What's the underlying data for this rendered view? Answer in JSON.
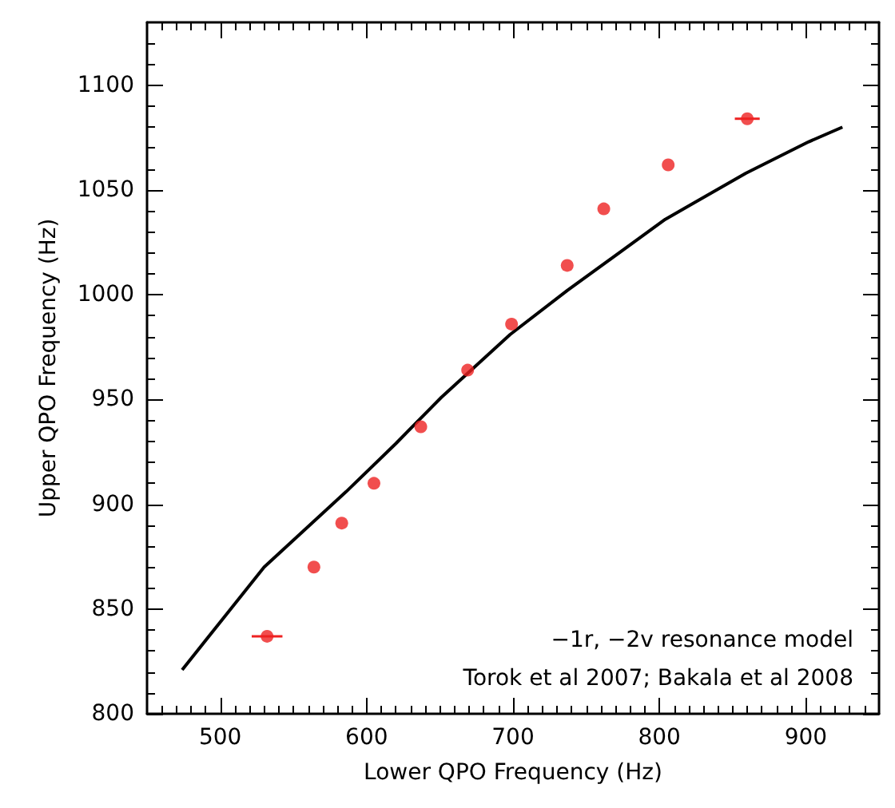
{
  "chart_data": {
    "type": "scatter",
    "xlabel": "Lower QPO Frequency (Hz)",
    "ylabel": "Upper QPO Frequency (Hz)",
    "xlim": [
      450,
      950
    ],
    "xticks": [
      500,
      600,
      700,
      800,
      900
    ],
    "ylim": [
      800,
      1130
    ],
    "yticks": [
      800,
      850,
      900,
      950,
      1000,
      1050,
      1100
    ],
    "grid": false,
    "series": [
      {
        "color": "#ee2222",
        "marker": "circle",
        "x": [
          532,
          564,
          583,
          605,
          637,
          669,
          699,
          737,
          762,
          806,
          860
        ],
        "values": [
          837,
          870,
          891,
          910,
          937,
          964,
          986,
          1014,
          1041,
          1062,
          1084
        ],
        "xerrors": [
          10.5,
          null,
          null,
          null,
          null,
          null,
          null,
          null,
          null,
          null,
          8.5
        ]
      },
      {
        "type": "line",
        "color": "#000000",
        "marker": "none",
        "line_style": "solid",
        "x": [
          474,
          530,
          586,
          620,
          651,
          698,
          737,
          804,
          859,
          902,
          925
        ],
        "values": [
          821,
          870,
          906,
          929,
          951,
          981,
          1002,
          1036,
          1058,
          1073,
          1080
        ]
      }
    ],
    "annotations": [
      "−1r, −2v resonance model",
      "Torok et al 2007; Bakala et al 2008"
    ]
  }
}
